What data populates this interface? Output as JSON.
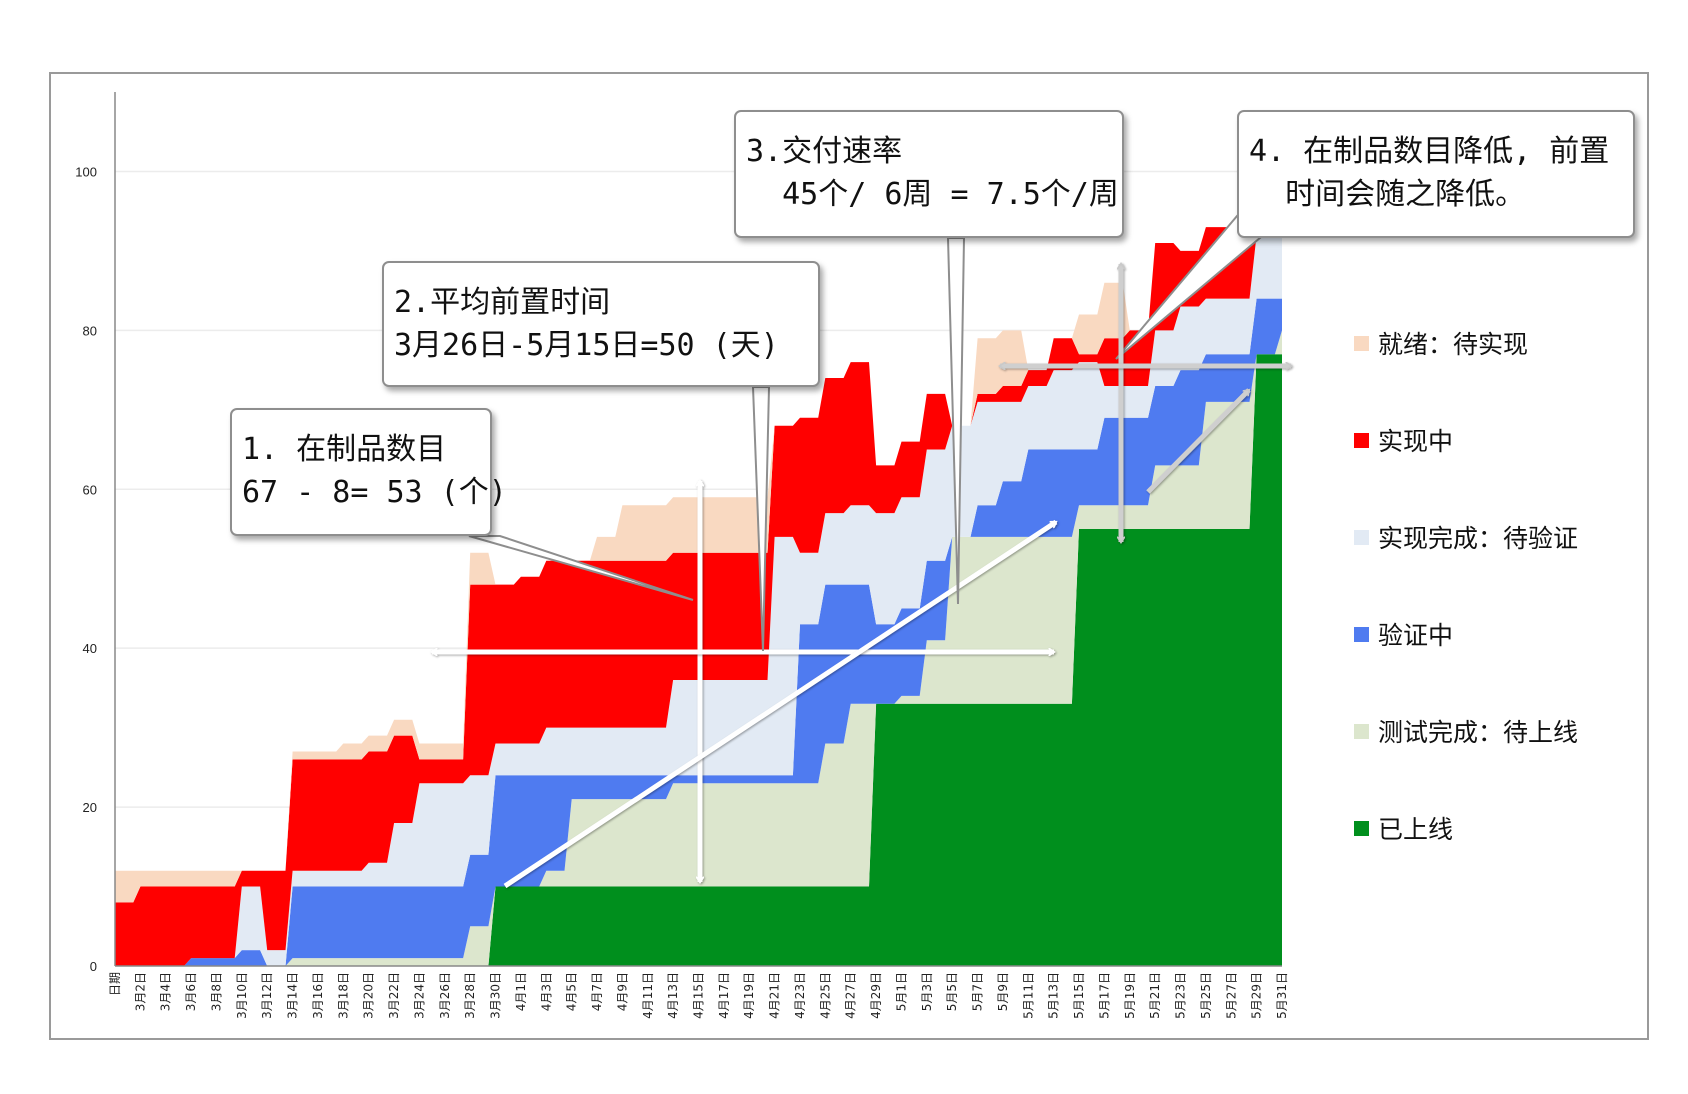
{
  "chart_data": {
    "type": "area",
    "stacked": true,
    "x_labels": [
      "日期",
      "3月2日",
      "3月4日",
      "3月6日",
      "3月8日",
      "3月10日",
      "3月12日",
      "3月14日",
      "3月16日",
      "3月18日",
      "3月20日",
      "3月22日",
      "3月24日",
      "3月26日",
      "3月28日",
      "3月30日",
      "4月1日",
      "4月3日",
      "4月5日",
      "4月7日",
      "4月9日",
      "4月11日",
      "4月13日",
      "4月15日",
      "4月17日",
      "4月19日",
      "4月21日",
      "4月23日",
      "4月25日",
      "4月27日",
      "4月29日",
      "5月1日",
      "5月3日",
      "5月5日",
      "5月7日",
      "5月9日",
      "5月11日",
      "5月13日",
      "5月15日",
      "5月17日",
      "5月19日",
      "5月21日",
      "5月23日",
      "5月25日",
      "5月27日",
      "5月29日",
      "5月31日"
    ],
    "yticks": [
      0,
      20,
      40,
      60,
      80,
      100
    ],
    "ylim": [
      0,
      110
    ],
    "grid": true,
    "legend_position": "right",
    "series": [
      {
        "name": "已上线",
        "color": "#008F1D",
        "values": [
          0,
          0,
          0,
          0,
          0,
          0,
          0,
          0,
          0,
          0,
          0,
          0,
          0,
          0,
          0,
          10,
          10,
          10,
          10,
          10,
          10,
          10,
          10,
          10,
          10,
          10,
          10,
          10,
          10,
          10,
          33,
          33,
          33,
          33,
          33,
          33,
          33,
          33,
          55,
          55,
          55,
          55,
          55,
          55,
          55,
          77,
          77
        ]
      },
      {
        "name": "测试完成：待上线",
        "color": "#DCE6CD",
        "values": [
          0,
          0,
          0,
          0,
          0,
          0,
          0,
          1,
          1,
          1,
          1,
          1,
          1,
          1,
          5,
          0,
          0,
          2,
          11,
          11,
          11,
          11,
          13,
          13,
          13,
          13,
          13,
          13,
          18,
          23,
          0,
          1,
          8,
          21,
          21,
          21,
          21,
          21,
          3,
          3,
          3,
          8,
          8,
          16,
          16,
          0,
          3
        ]
      },
      {
        "name": "验证中",
        "color": "#4F7BF0",
        "values": [
          0,
          0,
          0,
          1,
          1,
          2,
          0,
          9,
          9,
          9,
          9,
          9,
          9,
          9,
          9,
          14,
          14,
          12,
          3,
          3,
          3,
          3,
          1,
          1,
          1,
          1,
          1,
          20,
          20,
          15,
          10,
          11,
          10,
          0,
          4,
          7,
          11,
          11,
          7,
          11,
          11,
          10,
          12,
          6,
          6,
          7,
          4
        ]
      },
      {
        "name": "实现完成：待验证",
        "color": "#E2EAF4",
        "values": [
          0,
          0,
          0,
          0,
          0,
          8,
          2,
          2,
          2,
          2,
          3,
          8,
          13,
          13,
          10,
          4,
          4,
          6,
          6,
          6,
          6,
          6,
          12,
          12,
          12,
          12,
          30,
          9,
          9,
          10,
          14,
          14,
          14,
          14,
          13,
          10,
          8,
          10,
          11,
          4,
          4,
          7,
          8,
          7,
          7,
          8,
          8
        ]
      },
      {
        "name": "实现中",
        "color": "#FF0000",
        "values": [
          8,
          10,
          10,
          9,
          9,
          2,
          10,
          14,
          14,
          14,
          14,
          11,
          3,
          3,
          24,
          20,
          21,
          21,
          21,
          21,
          21,
          21,
          16,
          16,
          16,
          16,
          14,
          17,
          17,
          18,
          6,
          7,
          7,
          0,
          1,
          2,
          2,
          4,
          1,
          6,
          7,
          11,
          7,
          9,
          9,
          4,
          4
        ]
      },
      {
        "name": "就绪：待实现",
        "color": "#F9D9C1",
        "values": [
          4,
          2,
          2,
          2,
          2,
          0,
          0,
          1,
          1,
          2,
          2,
          2,
          2,
          2,
          4,
          0,
          0,
          0,
          0,
          3,
          7,
          7,
          7,
          7,
          7,
          7,
          0,
          0,
          0,
          0,
          0,
          0,
          0,
          0,
          7,
          7,
          0,
          0,
          5,
          7,
          0,
          0,
          0,
          0,
          0,
          0,
          0
        ]
      }
    ]
  },
  "callouts": [
    {
      "line1": "1. 在制品数目",
      "line2": "67 - 8= 53 (个)"
    },
    {
      "line1": "2.平均前置时间",
      "line2": "3月26日-5月15日=50 (天)"
    },
    {
      "line1": "3.交付速率",
      "line2": "  45个/ 6周 = 7.5个/周"
    },
    {
      "line1": "4. 在制品数目降低, 前置",
      "line2": "  时间会随之降低。"
    }
  ]
}
